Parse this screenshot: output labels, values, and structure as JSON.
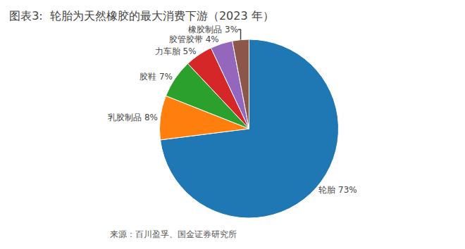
{
  "chart_data": {
    "type": "pie",
    "title": "图表3:  轮胎为天然橡胶的最大消费下游（2023 年）",
    "categories": [
      "轮胎 73%",
      "乳胶制品 8%",
      "胶鞋 7%",
      "力车胎 5%",
      "胶管胶带 4%",
      "橡胶制品 3%"
    ],
    "values": [
      73,
      8,
      7,
      5,
      4,
      3
    ],
    "annotations": [
      "来源：百川盈孚、国金证券研究所"
    ],
    "legend": "none"
  }
}
